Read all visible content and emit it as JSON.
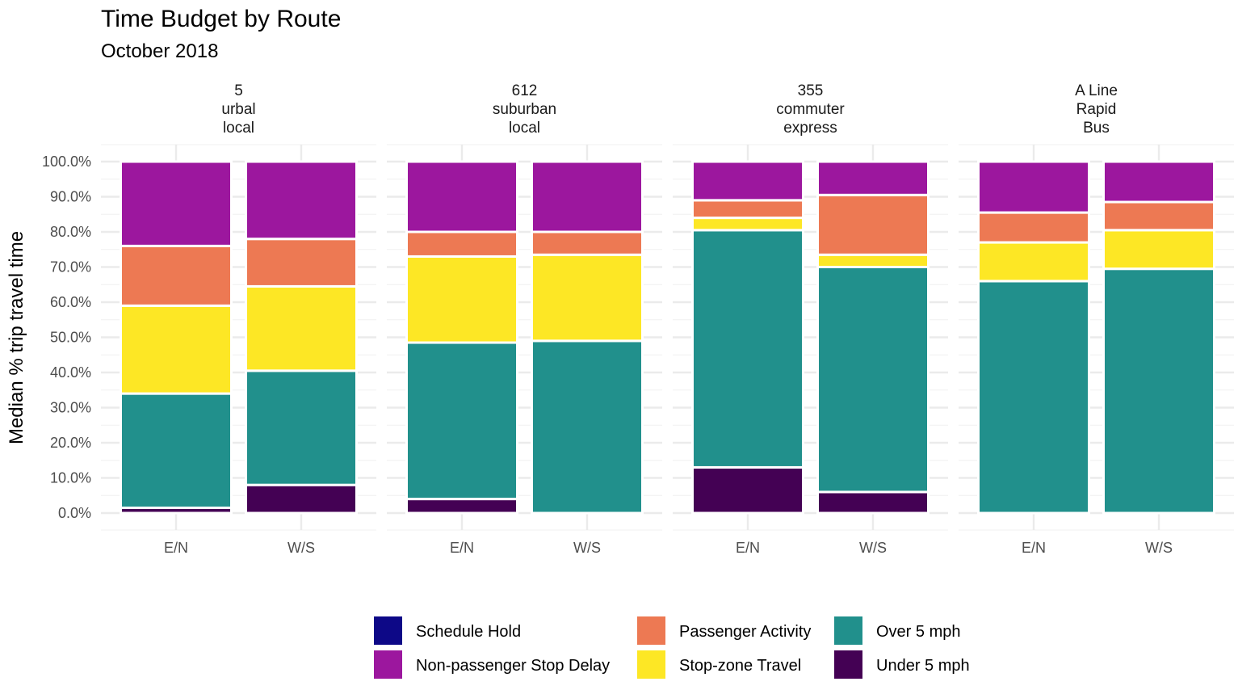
{
  "chart_data": {
    "type": "bar",
    "stacked": true,
    "title": "Time Budget by Route",
    "subtitle": "October 2018",
    "ylabel": "Median % trip travel time",
    "xlabel": "",
    "ylim": [
      0,
      100
    ],
    "yticks": [
      "0.0%",
      "10.0%",
      "20.0%",
      "30.0%",
      "40.0%",
      "50.0%",
      "60.0%",
      "70.0%",
      "80.0%",
      "90.0%",
      "100.0%"
    ],
    "grid": true,
    "legend_position": "bottom",
    "stack_order_bottom_to_top": [
      "Under 5 mph",
      "Over 5 mph",
      "Stop-zone Travel",
      "Passenger Activity",
      "Non-passenger Stop Delay",
      "Schedule Hold"
    ],
    "legend": [
      {
        "name": "Schedule Hold",
        "color": "#0d0887"
      },
      {
        "name": "Non-passenger Stop Delay",
        "color": "#9c179e"
      },
      {
        "name": "Passenger Activity",
        "color": "#ed7953"
      },
      {
        "name": "Stop-zone Travel",
        "color": "#fde725"
      },
      {
        "name": "Over 5 mph",
        "color": "#21908c"
      },
      {
        "name": "Under 5 mph",
        "color": "#440154"
      }
    ],
    "facets": [
      {
        "label_lines": [
          "5",
          "urbal",
          "local"
        ],
        "categories": [
          "E/N",
          "W/S"
        ],
        "series": [
          {
            "name": "Under 5 mph",
            "values": [
              1.5,
              8.0
            ]
          },
          {
            "name": "Over 5 mph",
            "values": [
              32.5,
              32.5
            ]
          },
          {
            "name": "Stop-zone Travel",
            "values": [
              25.0,
              24.0
            ]
          },
          {
            "name": "Passenger Activity",
            "values": [
              17.0,
              13.5
            ]
          },
          {
            "name": "Non-passenger Stop Delay",
            "values": [
              24.0,
              22.0
            ]
          },
          {
            "name": "Schedule Hold",
            "values": [
              0,
              0
            ]
          }
        ]
      },
      {
        "label_lines": [
          "612",
          "suburban",
          "local"
        ],
        "categories": [
          "E/N",
          "W/S"
        ],
        "series": [
          {
            "name": "Under 5 mph",
            "values": [
              4.0,
              0
            ]
          },
          {
            "name": "Over 5 mph",
            "values": [
              44.5,
              49.0
            ]
          },
          {
            "name": "Stop-zone Travel",
            "values": [
              24.5,
              24.5
            ]
          },
          {
            "name": "Passenger Activity",
            "values": [
              7.0,
              6.5
            ]
          },
          {
            "name": "Non-passenger Stop Delay",
            "values": [
              20.0,
              20.0
            ]
          },
          {
            "name": "Schedule Hold",
            "values": [
              0,
              0
            ]
          }
        ]
      },
      {
        "label_lines": [
          "355",
          "commuter",
          "express"
        ],
        "categories": [
          "E/N",
          "W/S"
        ],
        "series": [
          {
            "name": "Under 5 mph",
            "values": [
              13.0,
              6.0
            ]
          },
          {
            "name": "Over 5 mph",
            "values": [
              67.5,
              64.0
            ]
          },
          {
            "name": "Stop-zone Travel",
            "values": [
              3.5,
              3.5
            ]
          },
          {
            "name": "Passenger Activity",
            "values": [
              5.0,
              17.0
            ]
          },
          {
            "name": "Non-passenger Stop Delay",
            "values": [
              11.0,
              9.5
            ]
          },
          {
            "name": "Schedule Hold",
            "values": [
              0,
              0
            ]
          }
        ]
      },
      {
        "label_lines": [
          "A Line",
          "Rapid",
          "Bus"
        ],
        "categories": [
          "E/N",
          "W/S"
        ],
        "series": [
          {
            "name": "Under 5 mph",
            "values": [
              0,
              0
            ]
          },
          {
            "name": "Over 5 mph",
            "values": [
              66.0,
              69.5
            ]
          },
          {
            "name": "Stop-zone Travel",
            "values": [
              11.0,
              11.0
            ]
          },
          {
            "name": "Passenger Activity",
            "values": [
              8.5,
              8.0
            ]
          },
          {
            "name": "Non-passenger Stop Delay",
            "values": [
              14.5,
              11.5
            ]
          },
          {
            "name": "Schedule Hold",
            "values": [
              0,
              0
            ]
          }
        ]
      }
    ]
  }
}
